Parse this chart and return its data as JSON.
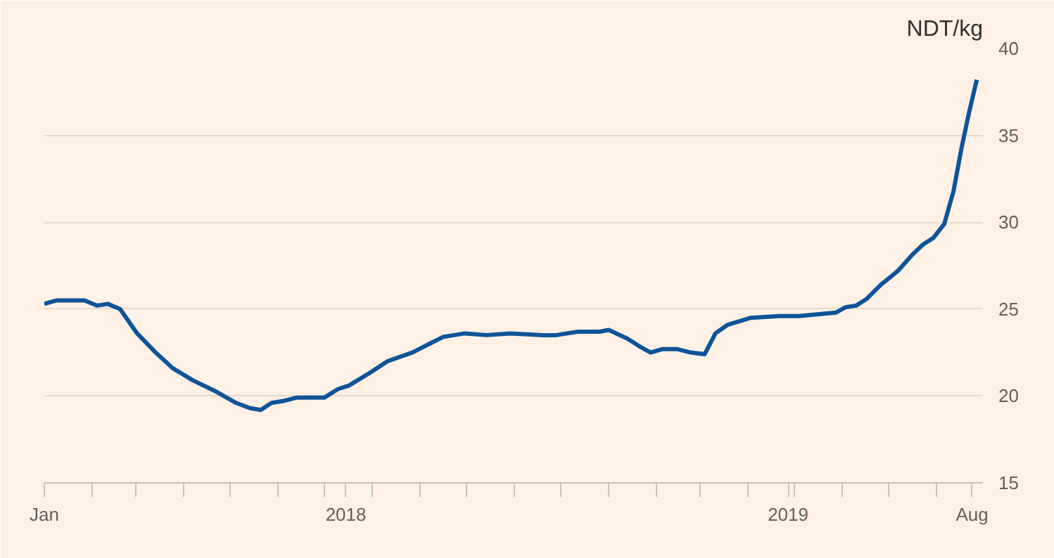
{
  "chart_data": {
    "type": "line",
    "ylabel": "NDT/kg",
    "x": [
      "2018-01-01",
      "2018-01-09",
      "2018-01-27",
      "2018-02-04",
      "2018-02-11",
      "2018-02-19",
      "2018-03-02",
      "2018-03-14",
      "2018-03-25",
      "2018-04-07",
      "2018-04-21",
      "2018-05-05",
      "2018-05-14",
      "2018-05-21",
      "2018-05-28",
      "2018-06-04",
      "2018-06-13",
      "2018-07-01",
      "2018-07-10",
      "2018-07-17",
      "2018-07-30",
      "2018-08-11",
      "2018-08-27",
      "2018-09-07",
      "2018-09-16",
      "2018-09-30",
      "2018-10-14",
      "2018-10-29",
      "2018-11-19",
      "2018-11-28",
      "2018-12-12",
      "2018-12-26",
      "2019-01-01",
      "2019-01-13",
      "2019-01-22",
      "2019-01-28",
      "2019-02-05",
      "2019-02-14",
      "2019-02-23",
      "2019-03-04",
      "2019-03-11",
      "2019-03-19",
      "2019-04-03",
      "2019-04-21",
      "2019-05-04",
      "2019-05-28",
      "2019-06-03",
      "2019-06-10",
      "2019-06-17",
      "2019-06-26",
      "2019-07-07",
      "2019-07-16",
      "2019-07-23",
      "2019-07-30",
      "2019-08-06",
      "2019-08-12",
      "2019-08-17",
      "2019-08-22",
      "2019-08-27"
    ],
    "series": [
      {
        "color": "#0f5499",
        "values": [
          25.3,
          25.5,
          25.5,
          25.2,
          25.3,
          25.0,
          23.6,
          22.5,
          21.6,
          20.9,
          20.3,
          19.6,
          19.3,
          19.2,
          19.6,
          19.7,
          19.9,
          19.9,
          20.4,
          20.6,
          21.3,
          22.0,
          22.5,
          23.0,
          23.4,
          23.6,
          23.5,
          23.6,
          23.5,
          23.5,
          23.7,
          23.7,
          23.8,
          23.3,
          22.8,
          22.5,
          22.7,
          22.7,
          22.5,
          22.4,
          23.6,
          24.1,
          24.5,
          24.6,
          24.6,
          24.8,
          25.1,
          25.2,
          25.6,
          26.4,
          27.2,
          28.1,
          28.7,
          29.1,
          29.9,
          31.8,
          34.2,
          36.3,
          38.2
        ]
      }
    ],
    "xlim": [
      "2018-01-01",
      "2019-08-31"
    ],
    "xticks": [
      {
        "value": "2018-01-01",
        "label": "Jan"
      },
      {
        "value": "2018-02-01",
        "label": null
      },
      {
        "value": "2018-03-01",
        "label": null
      },
      {
        "value": "2018-04-01",
        "label": null
      },
      {
        "value": "2018-05-01",
        "label": null
      },
      {
        "value": "2018-06-01",
        "label": null
      },
      {
        "value": "2018-07-01",
        "label": null
      },
      {
        "value": "2018-07-15",
        "label": "2018"
      },
      {
        "value": "2018-08-01",
        "label": null
      },
      {
        "value": "2018-09-01",
        "label": null
      },
      {
        "value": "2018-10-01",
        "label": null
      },
      {
        "value": "2018-11-01",
        "label": null
      },
      {
        "value": "2018-12-01",
        "label": null
      },
      {
        "value": "2019-01-01",
        "label": null
      },
      {
        "value": "2019-02-01",
        "label": null
      },
      {
        "value": "2019-03-01",
        "label": null
      },
      {
        "value": "2019-04-01",
        "label": null
      },
      {
        "value": "2019-04-27",
        "label": "2019"
      },
      {
        "value": "2019-05-01",
        "label": null
      },
      {
        "value": "2019-06-01",
        "label": null
      },
      {
        "value": "2019-07-01",
        "label": null
      },
      {
        "value": "2019-08-01",
        "label": null
      },
      {
        "value": "2019-08-24",
        "label": "Aug"
      }
    ],
    "ylim": [
      15,
      40
    ],
    "yticks": [
      15,
      20,
      25,
      30,
      35,
      40
    ],
    "grid": "y",
    "marker": "none",
    "line_style": "solid"
  }
}
